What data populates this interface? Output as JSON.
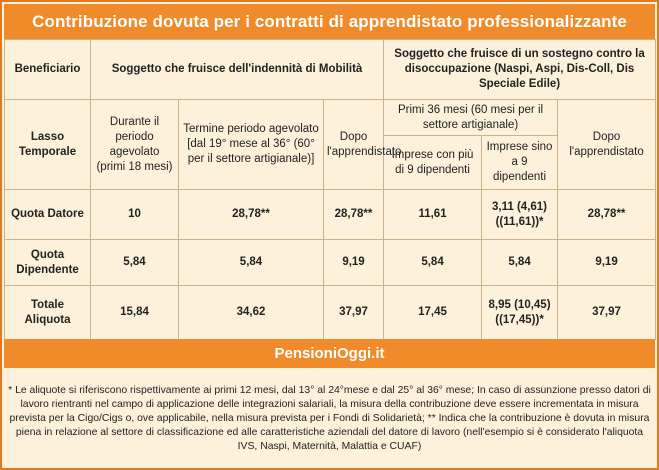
{
  "title": "Contribuzione dovuta per i contratti di apprendistato professionalizzante",
  "header": {
    "beneficiario": "Beneficiario",
    "mobilita": "Soggetto che fruisce dell'indennità di Mobilità",
    "sostegno": "Soggetto che fruisce di un sostegno contro la disoccupazione (Naspi, Aspi, Dis-Coll, Dis Speciale Edile)",
    "lasso": "Lasso Temporale",
    "durante": "Durante il periodo agevolato (primi 18 mesi)",
    "termine": "Termine periodo agevolato [dal 19° mese al 36° (60° per il settore artigianale)]",
    "dopo1": "Dopo l'apprendistato",
    "primi36": "Primi 36 mesi (60 mesi per il settore artigianale)",
    "dopo2": "Dopo l'apprendistato",
    "imprese_piu9": "Imprese con più di 9 dipendenti",
    "imprese_sino9": "Imprese sino a 9 dipendenti"
  },
  "rows": [
    {
      "label": "Quota Datore",
      "v1": "10",
      "v2": "28,78**",
      "v3": "28,78**",
      "v4": "11,61",
      "v5": "3,11 (4,61) ((11,61))*",
      "v6": "28,78**"
    },
    {
      "label": "Quota Dipendente",
      "v1": "5,84",
      "v2": "5,84",
      "v3": "9,19",
      "v4": "5,84",
      "v5": "5,84",
      "v6": "9,19"
    },
    {
      "label": "Totale Aliquota",
      "v1": "15,84",
      "v2": "34,62",
      "v3": "37,97",
      "v4": "17,45",
      "v5": "8,95 (10,45) ((17,45))*",
      "v6": "37,97"
    }
  ],
  "brand": "PensioniOggi.it",
  "note": "* Le aliquote si riferiscono rispettivamente ai primi 12 mesi, dal 13° al 24°mese e dal 25° al 36° mese; In caso di assunzione presso datori di lavoro rientranti nel campo di applicazione delle integrazioni salariali, la misura della contribuzione deve essere incrementata in misura prevista per la Cigo/Cigs o, ove applicabile, nella misura prevista per i Fondi di Solidarietà; ** Indica che la contribuzione è dovuta in misura piena in relazione al settore di classificazione ed alle caratteristiche aziendali del datore di lavoro (nell'esempio si è considerato l'aliquota IVS, Naspi, Maternità, Malattia e CUAF)"
}
